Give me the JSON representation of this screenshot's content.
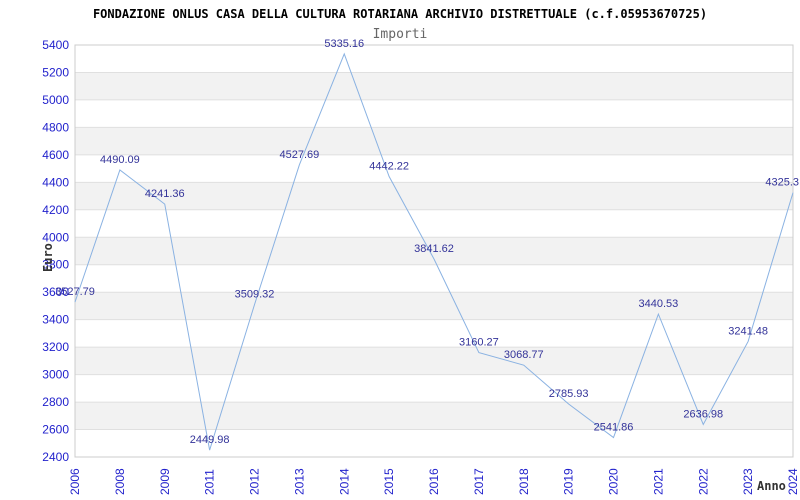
{
  "header": {
    "title": "FONDAZIONE ONLUS CASA DELLA CULTURA ROTARIANA ARCHIVIO DISTRETTUALE (c.f.05953670725)",
    "subtitle": "Importi"
  },
  "chart_data": {
    "type": "line",
    "title": "FONDAZIONE ONLUS CASA DELLA CULTURA ROTARIANA ARCHIVIO DISTRETTUALE (c.f.05953670725)",
    "subtitle": "Importi",
    "xlabel": "Anno",
    "ylabel": "Euro",
    "categories": [
      "2006",
      "2008",
      "2009",
      "2011",
      "2012",
      "2013",
      "2014",
      "2015",
      "2016",
      "2017",
      "2018",
      "2019",
      "2020",
      "2021",
      "2022",
      "2023",
      "2024"
    ],
    "values": [
      3527.79,
      4490.09,
      4241.36,
      2449.98,
      3509.32,
      4527.69,
      5335.16,
      4442.22,
      3841.62,
      3160.27,
      3068.77,
      2785.93,
      2541.86,
      3440.53,
      2636.98,
      3241.48,
      4325.3
    ],
    "point_labels": [
      "3527.79",
      "4490.09",
      "4241.36",
      "2449.98",
      "3509.32",
      "4527.69",
      "5335.16",
      "4442.22",
      "3841.62",
      "3160.27",
      "3068.77",
      "2785.93",
      "2541.86",
      "3440.53",
      "2636.98",
      "3241.48",
      "4325.3"
    ],
    "ylim": [
      2400,
      5400
    ],
    "ytick_step": 200,
    "yticks": [
      2400,
      2600,
      2800,
      3000,
      3200,
      3400,
      3600,
      3800,
      4000,
      4200,
      4400,
      4600,
      4800,
      5000,
      5200,
      5400
    ],
    "grid": true,
    "legend": "none",
    "band_pattern": "alternating horizontal white/gray bands, white at top",
    "colors": {
      "line": "#8ab2e2",
      "tick_label": "#2222cc",
      "data_label": "#333399",
      "gridline": "#e0e0e0",
      "band": "#f2f2f2",
      "plot_border": "#cccccc",
      "title": "#000000",
      "subtitle": "#666666",
      "axis_title": "#333333"
    }
  }
}
